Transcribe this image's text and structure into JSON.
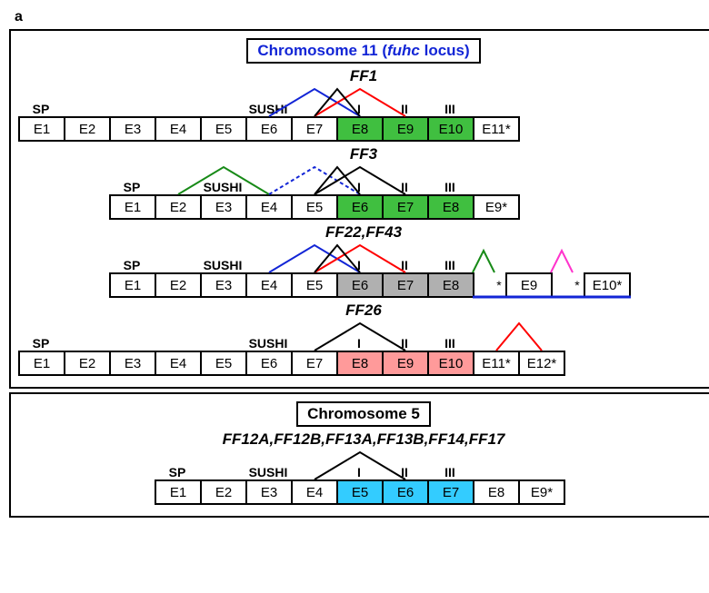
{
  "panel_letter": "a",
  "colors": {
    "white": "#ffffff",
    "green": "#40bf40",
    "gray": "#b0b0b0",
    "pink": "#ff9a9a",
    "cyan": "#33ccff",
    "line_red": "#ff0000",
    "line_blue": "#1225d6",
    "line_green": "#178a17",
    "line_magenta": "#ff33cc",
    "line_black": "#000000"
  },
  "exon_width": 52,
  "exon_height": 28,
  "label_height": 34,
  "gap_width": 20,
  "peak_height": 30,
  "chromosome11": {
    "title_prefix": "Chromosome 11 (",
    "title_locus": "fuhc",
    "title_suffix": " locus)",
    "tracks": [
      {
        "name": "FF1",
        "indent": 0,
        "labels": [
          "SP",
          "",
          "",
          "",
          "",
          "SUSHI",
          "",
          "I",
          "II",
          "III",
          ""
        ],
        "exons": [
          {
            "t": "E1",
            "c": "white"
          },
          {
            "t": "E2",
            "c": "white"
          },
          {
            "t": "E3",
            "c": "white"
          },
          {
            "t": "E4",
            "c": "white"
          },
          {
            "t": "E5",
            "c": "white"
          },
          {
            "t": "E6",
            "c": "white"
          },
          {
            "t": "E7",
            "c": "white"
          },
          {
            "t": "E8",
            "c": "green"
          },
          {
            "t": "E9",
            "c": "green"
          },
          {
            "t": "E10",
            "c": "green"
          },
          {
            "t": "E11*",
            "c": "white"
          }
        ],
        "peaks": [
          {
            "from": 5,
            "to": 7,
            "color": "line_blue",
            "dash": false
          },
          {
            "from": 6,
            "to": 8,
            "color": "line_red",
            "dash": false
          },
          {
            "from": 6,
            "to": 7,
            "color": "line_black",
            "dash": false
          }
        ]
      },
      {
        "name": "FF3",
        "indent": 2,
        "labels": [
          "SP",
          "",
          "SUSHI",
          "",
          "",
          "I",
          "II",
          "III",
          ""
        ],
        "exons": [
          {
            "t": "E1",
            "c": "white"
          },
          {
            "t": "E2",
            "c": "white"
          },
          {
            "t": "E3",
            "c": "white"
          },
          {
            "t": "E4",
            "c": "white"
          },
          {
            "t": "E5",
            "c": "white"
          },
          {
            "t": "E6",
            "c": "green"
          },
          {
            "t": "E7",
            "c": "green"
          },
          {
            "t": "E8",
            "c": "green"
          },
          {
            "t": "E9*",
            "c": "white"
          }
        ],
        "peaks": [
          {
            "from": 1,
            "to": 3,
            "color": "line_green",
            "dash": false
          },
          {
            "from": 3,
            "to": 5,
            "color": "line_blue",
            "dash": true
          },
          {
            "from": 4,
            "to": 6,
            "color": "line_black",
            "dash": false
          },
          {
            "from": 4,
            "to": 5,
            "color": "line_black",
            "dash": false
          }
        ]
      },
      {
        "name": "FF22,FF43",
        "indent": 2,
        "labels": [
          "SP",
          "",
          "SUSHI",
          "",
          "",
          "I",
          "II",
          "III"
        ],
        "exons": [
          {
            "t": "E1",
            "c": "white"
          },
          {
            "t": "E2",
            "c": "white"
          },
          {
            "t": "E3",
            "c": "white"
          },
          {
            "t": "E4",
            "c": "white"
          },
          {
            "t": "E5",
            "c": "white"
          },
          {
            "t": "E6",
            "c": "gray"
          },
          {
            "t": "E7",
            "c": "gray"
          },
          {
            "t": "E8",
            "c": "gray"
          }
        ],
        "tail": [
          {
            "gap": true,
            "ast": "*"
          },
          {
            "t": "E9",
            "c": "white"
          },
          {
            "gap": true,
            "ast": "*"
          },
          {
            "t": "E10*",
            "c": "white"
          }
        ],
        "peaks": [
          {
            "from": 3,
            "to": 5,
            "color": "line_blue",
            "dash": false
          },
          {
            "from": 4,
            "to": 6,
            "color": "line_red",
            "dash": false
          },
          {
            "from": 4,
            "to": 5,
            "color": "line_black",
            "dash": false
          }
        ],
        "tail_peaks": [
          {
            "slot": 0,
            "color": "line_green"
          },
          {
            "slot": 1,
            "color": "line_magenta"
          }
        ],
        "tail_underline": true
      },
      {
        "name": "FF26",
        "indent": 0,
        "labels": [
          "SP",
          "",
          "",
          "",
          "",
          "SUSHI",
          "",
          "I",
          "II",
          "III",
          "",
          ""
        ],
        "exons": [
          {
            "t": "E1",
            "c": "white"
          },
          {
            "t": "E2",
            "c": "white"
          },
          {
            "t": "E3",
            "c": "white"
          },
          {
            "t": "E4",
            "c": "white"
          },
          {
            "t": "E5",
            "c": "white"
          },
          {
            "t": "E6",
            "c": "white"
          },
          {
            "t": "E7",
            "c": "white"
          },
          {
            "t": "E8",
            "c": "pink"
          },
          {
            "t": "E9",
            "c": "pink"
          },
          {
            "t": "E10",
            "c": "pink"
          },
          {
            "t": "E11*",
            "c": "white"
          },
          {
            "t": "E12*",
            "c": "white"
          }
        ],
        "peaks": [
          {
            "from": 6,
            "to": 8,
            "color": "line_black",
            "dash": false
          },
          {
            "from": 10,
            "to": 11,
            "color": "line_red",
            "dash": false
          }
        ]
      }
    ]
  },
  "chromosome5": {
    "title": "Chromosome 5",
    "gene_list": "FF12A,FF12B,FF13A,FF13B,FF14,FF17",
    "track": {
      "indent": 3,
      "labels": [
        "SP",
        "",
        "SUSHI",
        "",
        "I",
        "II",
        "III",
        "",
        ""
      ],
      "exons": [
        {
          "t": "E1",
          "c": "white"
        },
        {
          "t": "E2",
          "c": "white"
        },
        {
          "t": "E3",
          "c": "white"
        },
        {
          "t": "E4",
          "c": "white"
        },
        {
          "t": "E5",
          "c": "cyan"
        },
        {
          "t": "E6",
          "c": "cyan"
        },
        {
          "t": "E7",
          "c": "cyan"
        },
        {
          "t": "E8",
          "c": "white"
        },
        {
          "t": "E9*",
          "c": "white"
        }
      ],
      "peaks": [
        {
          "from": 3,
          "to": 5,
          "color": "line_black",
          "dash": false
        }
      ]
    }
  }
}
